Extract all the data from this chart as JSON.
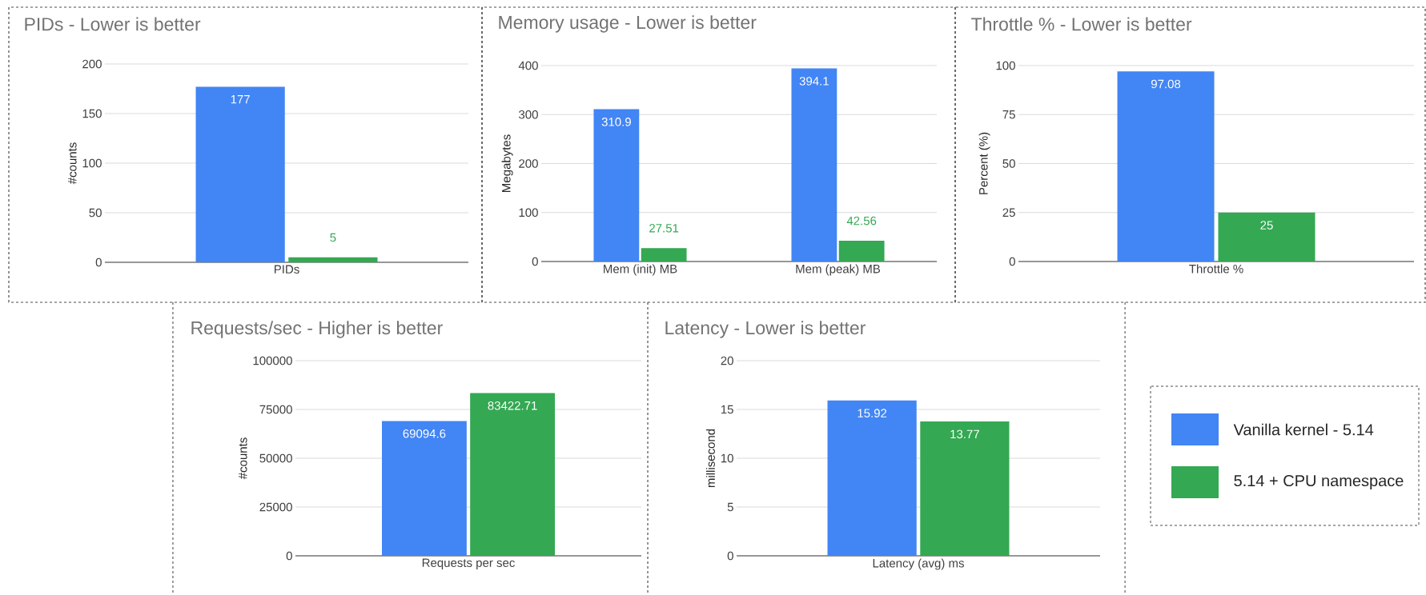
{
  "chart_data": [
    {
      "type": "bar",
      "title": "PIDs - Lower is better",
      "ylabel": "#counts",
      "categories": [
        "PIDs"
      ],
      "series": [
        {
          "color": "#4285f4",
          "values": [
            177
          ]
        },
        {
          "color": "#34a853",
          "values": [
            5
          ]
        }
      ],
      "ylim": [
        0,
        200
      ],
      "yticks": [
        0,
        50,
        100,
        150,
        200
      ],
      "grid": "y",
      "data_labels": true
    },
    {
      "type": "bar",
      "title": "Memory usage - Lower is better",
      "ylabel": "Megabytes",
      "categories": [
        "Mem (init) MB",
        "Mem (peak) MB"
      ],
      "series": [
        {
          "color": "#4285f4",
          "values": [
            310.9,
            394.1
          ]
        },
        {
          "color": "#34a853",
          "values": [
            27.51,
            42.56
          ]
        }
      ],
      "ylim": [
        0,
        400
      ],
      "yticks": [
        0,
        100,
        200,
        300,
        400
      ],
      "grid": "y",
      "data_labels": true
    },
    {
      "type": "bar",
      "title": "Throttle % - Lower is better",
      "ylabel": "Percent (%)",
      "categories": [
        "Throttle %"
      ],
      "series": [
        {
          "color": "#4285f4",
          "values": [
            97.08
          ]
        },
        {
          "color": "#34a853",
          "values": [
            25
          ]
        }
      ],
      "ylim": [
        0,
        100
      ],
      "yticks": [
        0,
        25,
        50,
        75,
        100
      ],
      "grid": "y",
      "data_labels": true
    },
    {
      "type": "bar",
      "title": "Requests/sec - Higher is better",
      "ylabel": "#counts",
      "categories": [
        "Requests per sec"
      ],
      "series": [
        {
          "color": "#4285f4",
          "values": [
            69094.6
          ]
        },
        {
          "color": "#34a853",
          "values": [
            83422.71
          ]
        }
      ],
      "ylim": [
        0,
        100000
      ],
      "yticks": [
        0,
        25000,
        50000,
        75000,
        100000
      ],
      "grid": "y",
      "data_labels": true
    },
    {
      "type": "bar",
      "title": "Latency - Lower is better",
      "ylabel": "millisecond",
      "categories": [
        "Latency (avg) ms"
      ],
      "series": [
        {
          "name": "Vanilla kernel - 5.14",
          "color": "#4285f4",
          "values": [
            15.92
          ]
        },
        {
          "name": "5.14 + CPU namespace",
          "color": "#34a853",
          "values": [
            13.77
          ]
        }
      ],
      "ylim": [
        0,
        20
      ],
      "yticks": [
        0,
        5,
        10,
        15,
        20
      ],
      "grid": "y",
      "data_labels": true,
      "legend": "right"
    }
  ]
}
